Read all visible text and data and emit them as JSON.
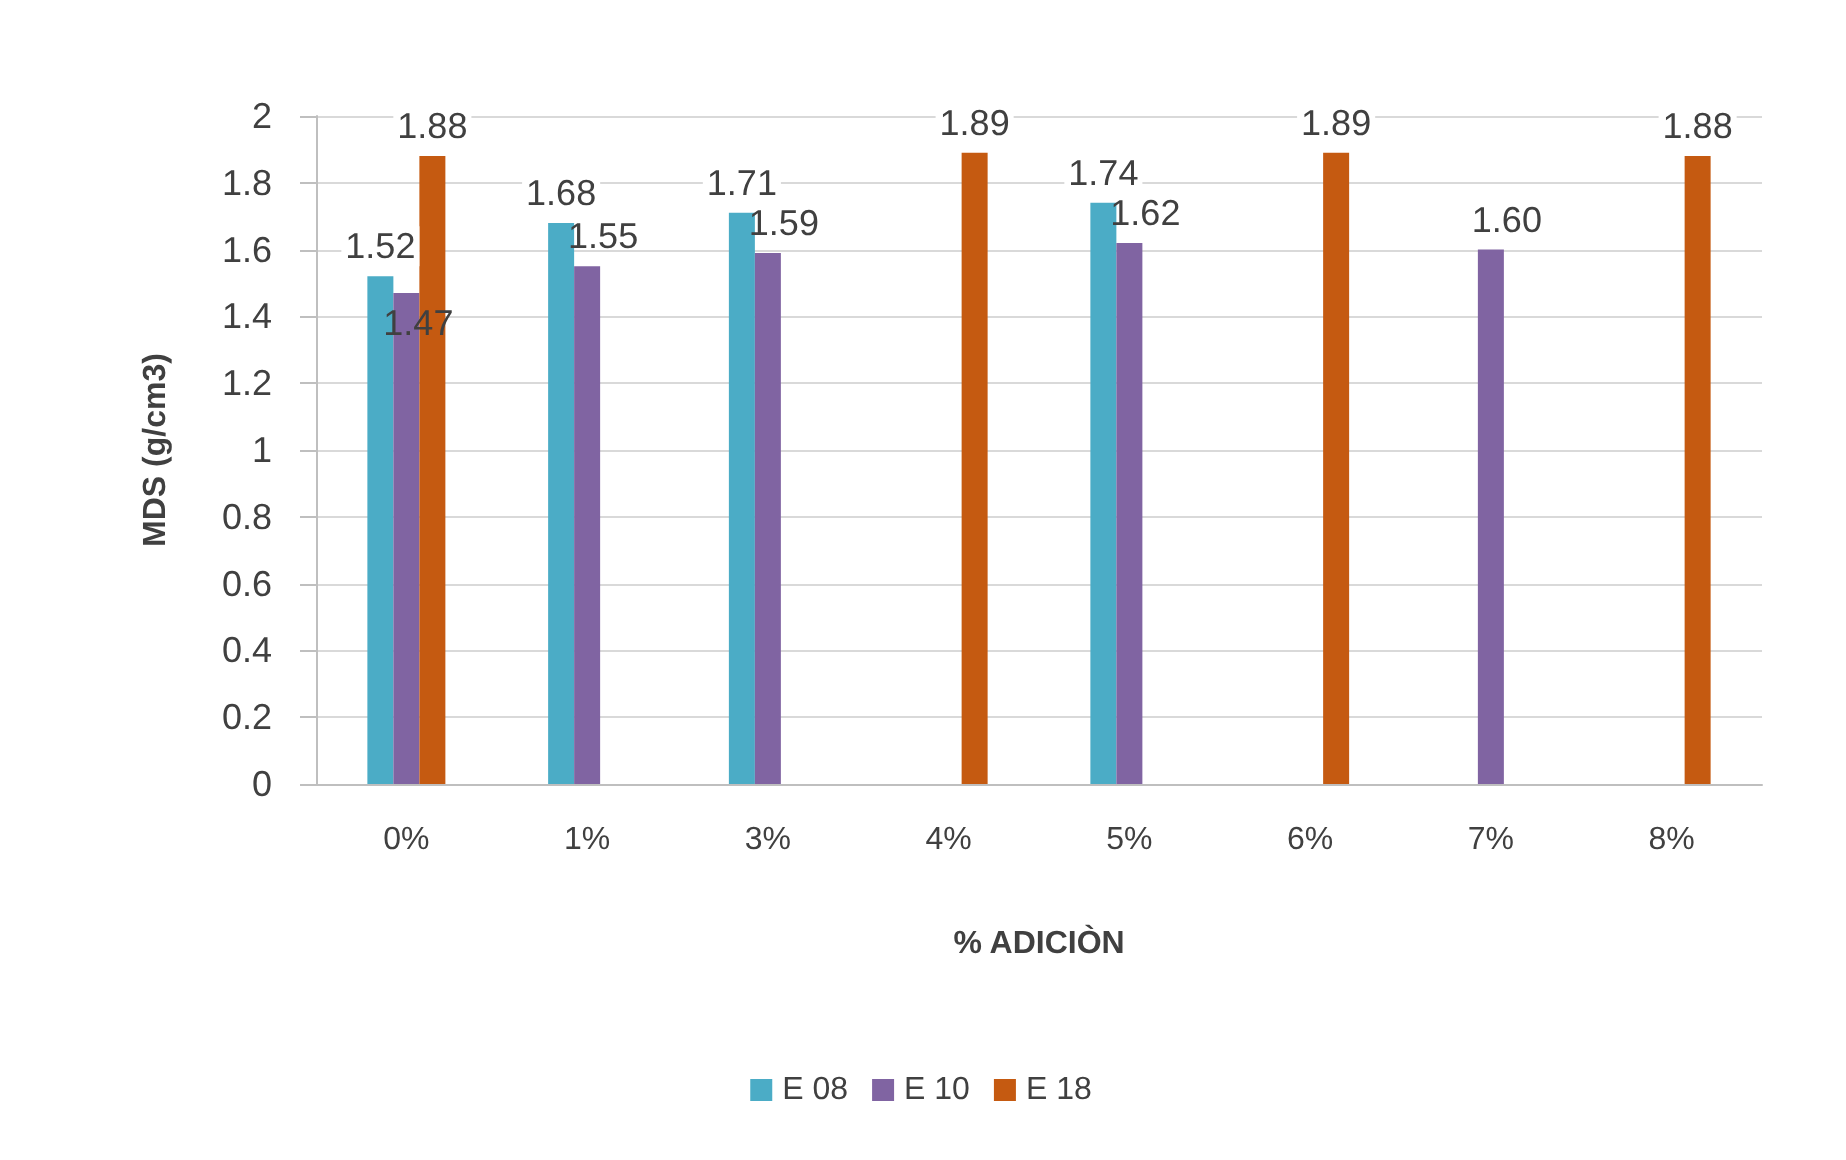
{
  "chart_data": {
    "type": "bar",
    "xlabel": "% ADICIÒN",
    "ylabel": "MDS (g/cm3)",
    "categories": [
      "0%",
      "1%",
      "3%",
      "4%",
      "5%",
      "6%",
      "7%",
      "8%"
    ],
    "series": [
      {
        "name": "E 08",
        "color": "#4bacc6",
        "values": [
          1.52,
          1.68,
          1.71,
          null,
          1.74,
          null,
          null,
          null
        ],
        "value_labels": [
          "1.52",
          "1.68",
          "1.71",
          null,
          "1.74",
          null,
          null,
          null
        ]
      },
      {
        "name": "E 10",
        "color": "#8064a2",
        "values": [
          1.47,
          1.55,
          1.59,
          null,
          1.62,
          null,
          1.6,
          null
        ],
        "value_labels": [
          "1.47",
          "1.55",
          "1.59",
          null,
          "1.62",
          null,
          "1.60",
          null
        ]
      },
      {
        "name": "E 18",
        "color": "#c55a11",
        "values": [
          1.88,
          null,
          null,
          1.89,
          null,
          1.89,
          null,
          1.88
        ],
        "value_labels": [
          "1.88",
          null,
          null,
          "1.89",
          null,
          "1.89",
          null,
          "1.88"
        ]
      }
    ],
    "ylim": [
      0,
      2
    ],
    "yticks": [
      0,
      0.2,
      0.4,
      0.6,
      0.8,
      1,
      1.2,
      1.4,
      1.6,
      1.8,
      2
    ],
    "grid": "y",
    "legend": "bottom"
  }
}
